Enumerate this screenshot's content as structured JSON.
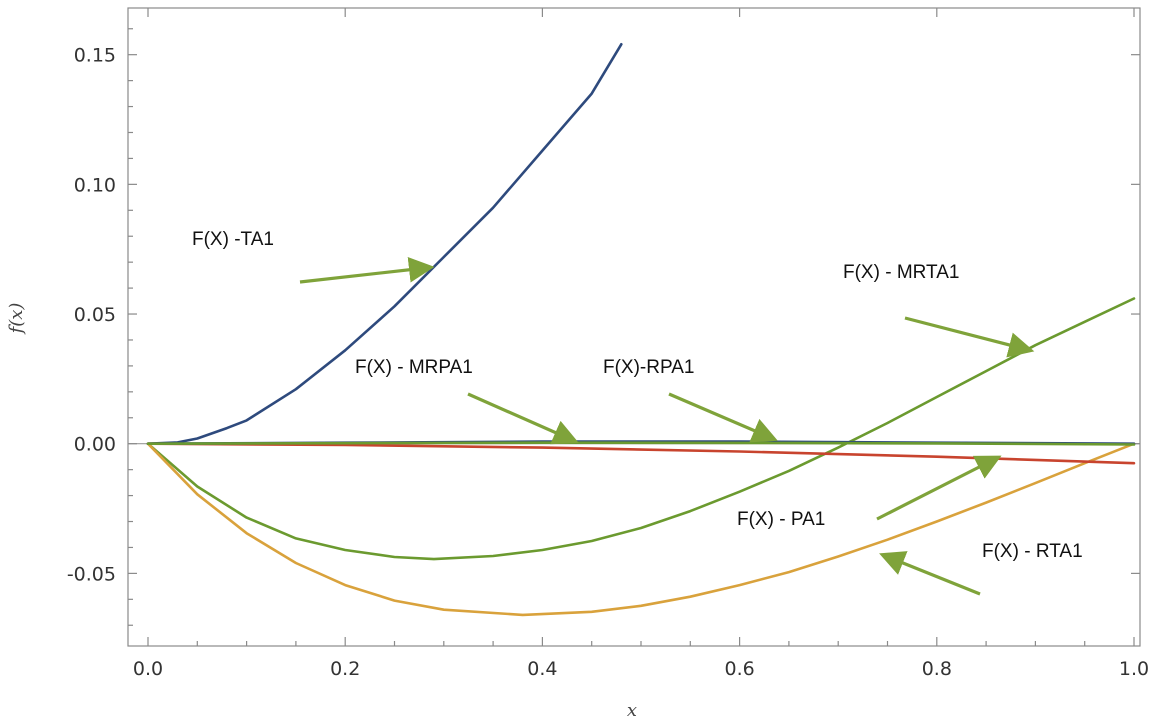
{
  "chart_data": {
    "type": "line",
    "xlabel": "x",
    "ylabel": "f(x)",
    "xlim": [
      0.0,
      1.0
    ],
    "ylim": [
      -0.078,
      0.168
    ],
    "xticks": [
      "0.0",
      "0.2",
      "0.4",
      "0.6",
      "0.8",
      "1.0"
    ],
    "yticks": [
      "-0.05",
      "0.00",
      "0.05",
      "0.10",
      "0.15"
    ],
    "xtick_values": [
      0.0,
      0.2,
      0.4,
      0.6,
      0.8,
      1.0
    ],
    "ytick_values": [
      -0.05,
      0.0,
      0.05,
      0.1,
      0.15
    ],
    "zero_line": true,
    "grid": false,
    "series": [
      {
        "name": "F(X) -TA1",
        "color": "#2e4a7d",
        "x": [
          0.0,
          0.03,
          0.05,
          0.08,
          0.1,
          0.15,
          0.2,
          0.25,
          0.3,
          0.35,
          0.4,
          0.45,
          0.48
        ],
        "y": [
          0.0,
          0.0005,
          0.002,
          0.006,
          0.009,
          0.021,
          0.036,
          0.053,
          0.072,
          0.091,
          0.113,
          0.135,
          0.154
        ]
      },
      {
        "name": "F(X) - MRTA1",
        "color": "#6b9a2f",
        "x": [
          0.0,
          0.05,
          0.1,
          0.15,
          0.2,
          0.25,
          0.29,
          0.35,
          0.4,
          0.45,
          0.5,
          0.55,
          0.6,
          0.65,
          0.7,
          0.75,
          0.8,
          0.85,
          0.9,
          0.95,
          1.0
        ],
        "y": [
          0.0,
          -0.0165,
          -0.0285,
          -0.0365,
          -0.041,
          -0.0437,
          -0.0445,
          -0.0433,
          -0.041,
          -0.0375,
          -0.0325,
          -0.026,
          -0.0185,
          -0.0105,
          -0.0015,
          0.008,
          0.018,
          0.028,
          0.038,
          0.047,
          0.056
        ]
      },
      {
        "name": "F(X) - RTA1",
        "color": "#d9a23c",
        "x": [
          0.0,
          0.05,
          0.1,
          0.15,
          0.2,
          0.25,
          0.3,
          0.38,
          0.45,
          0.5,
          0.55,
          0.6,
          0.65,
          0.7,
          0.75,
          0.8,
          0.85,
          0.9,
          0.95,
          1.0
        ],
        "y": [
          0.0,
          -0.0195,
          -0.0345,
          -0.046,
          -0.0545,
          -0.0605,
          -0.064,
          -0.066,
          -0.0648,
          -0.0625,
          -0.059,
          -0.0545,
          -0.0495,
          -0.0435,
          -0.037,
          -0.03,
          -0.0227,
          -0.0152,
          -0.0075,
          0.0
        ]
      },
      {
        "name": "F(X) - PA1",
        "color": "#c8442e",
        "x": [
          0.0,
          0.2,
          0.4,
          0.6,
          0.8,
          1.0
        ],
        "y": [
          0.0,
          -0.0005,
          -0.0015,
          -0.003,
          -0.005,
          -0.0075
        ]
      },
      {
        "name": "F(X)-RPA1",
        "color": "#2e4a7d",
        "x": [
          0.0,
          0.2,
          0.4,
          0.6,
          0.8,
          1.0
        ],
        "y": [
          0.0,
          0.0004,
          0.0008,
          0.0008,
          0.0004,
          0.0
        ]
      },
      {
        "name": "F(X) - MRPA1",
        "color": "#6b9a2f",
        "x": [
          0.0,
          0.2,
          0.4,
          0.6,
          0.8,
          1.0
        ],
        "y": [
          0.0,
          0.0002,
          0.0004,
          0.0003,
          0.0001,
          -0.0003
        ]
      }
    ],
    "annotations": [
      {
        "text": "F(X) -TA1"
      },
      {
        "text": "F(X) - MRTA1"
      },
      {
        "text": "F(X) - MRPA1"
      },
      {
        "text": "F(X)-RPA1"
      },
      {
        "text": "F(X) - PA1"
      },
      {
        "text": "F(X) - RTA1"
      }
    ],
    "arrow_color": "#7fa33a"
  }
}
